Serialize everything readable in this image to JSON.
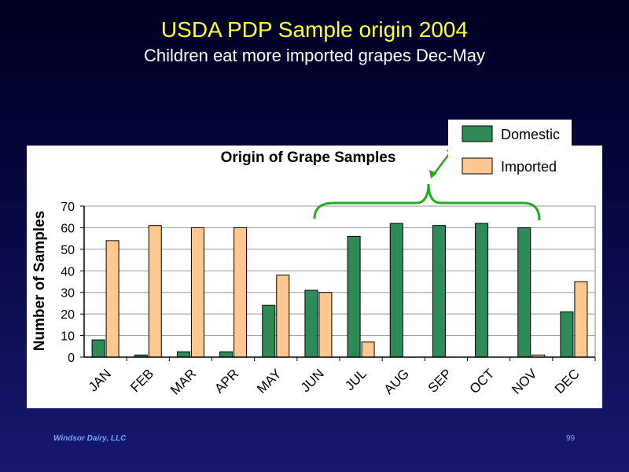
{
  "slide": {
    "title": "USDA PDP Sample origin 2004",
    "subtitle": "Children eat more imported grapes Dec-May"
  },
  "footer": {
    "company": "Windsor Dairy, LLC",
    "page_number": "99"
  },
  "colors": {
    "domestic": "#2e8b57",
    "imported": "#ffc891"
  },
  "chart_data": {
    "type": "bar",
    "title": "Origin of Grape Samples",
    "xlabel": "",
    "ylabel": "Number of Samples",
    "ylim": [
      0,
      70
    ],
    "yticks": [
      0,
      10,
      20,
      30,
      40,
      50,
      60,
      70
    ],
    "grid": true,
    "legend_position": "top-right",
    "categories": [
      "JAN",
      "FEB",
      "MAR",
      "APR",
      "MAY",
      "JUN",
      "JUL",
      "AUG",
      "SEP",
      "OCT",
      "NOV",
      "DEC"
    ],
    "series": [
      {
        "name": "Domestic",
        "values": [
          8,
          1,
          2.5,
          2.5,
          24,
          31,
          56,
          62,
          61,
          62,
          60,
          21
        ]
      },
      {
        "name": "Imported",
        "values": [
          54,
          61,
          60,
          60,
          38,
          30,
          7,
          0,
          0,
          0,
          1,
          35
        ]
      }
    ]
  }
}
